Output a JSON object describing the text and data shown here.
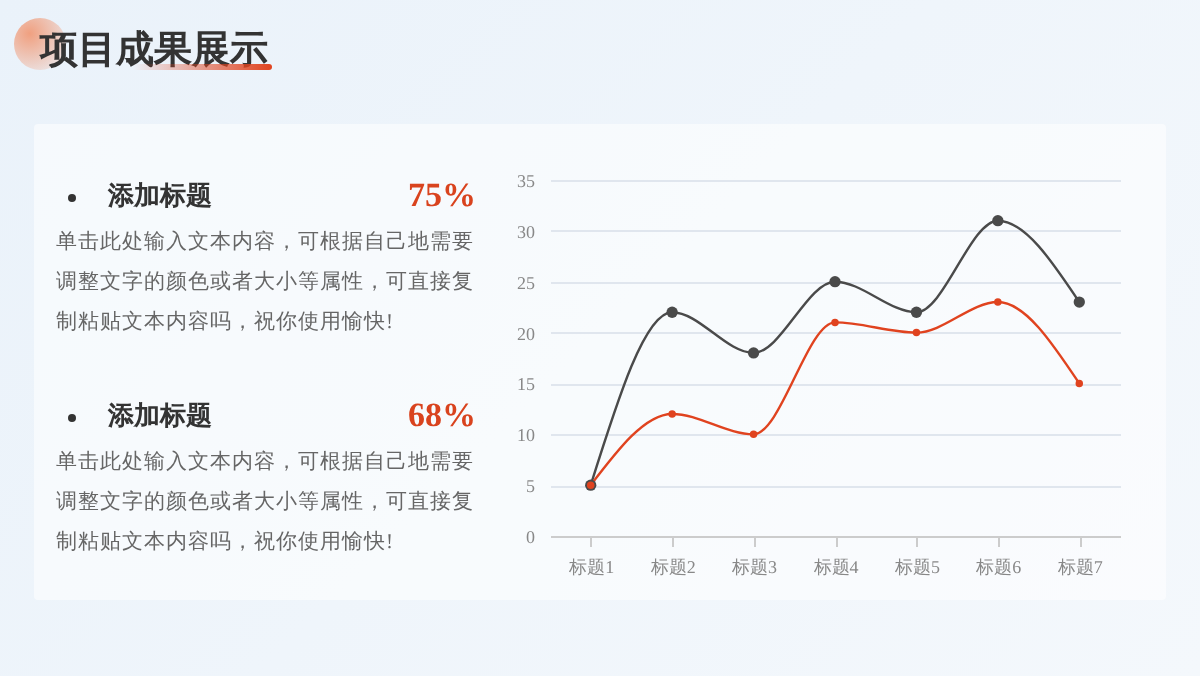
{
  "chart_data": [
    {
      "type": "other",
      "title": "项目成果展示",
      "annotations": [
        "添加标题",
        "75%",
        "单击此处输入文本内容，可根据自己地需要调整文字的颜色或者大小等属性，可直接复制粘贴文本内容吗，祝你使用愉快!",
        "添加标题",
        "68%",
        "单击此处输入文本内容，可根据自己地需要调整文字的颜色或者大小等属性，可直接复制粘贴文本内容吗，祝你使用愉快!"
      ]
    },
    {
      "type": "line",
      "categories": [
        "标题1",
        "标题2",
        "标题3",
        "标题4",
        "标题5",
        "标题6",
        "标题7"
      ],
      "ylim": [
        0,
        35
      ],
      "yticks": [
        0,
        5,
        10,
        15,
        20,
        25,
        30,
        35
      ],
      "grid": "y",
      "marker": "circle",
      "line_style": "solid",
      "series": [
        {
          "color": "#4a4a4a",
          "values": [
            5,
            22,
            18,
            25,
            22,
            31,
            23
          ]
        },
        {
          "color": "#e0431f",
          "values": [
            5,
            12,
            10,
            21,
            20,
            23,
            15
          ]
        }
      ]
    }
  ]
}
